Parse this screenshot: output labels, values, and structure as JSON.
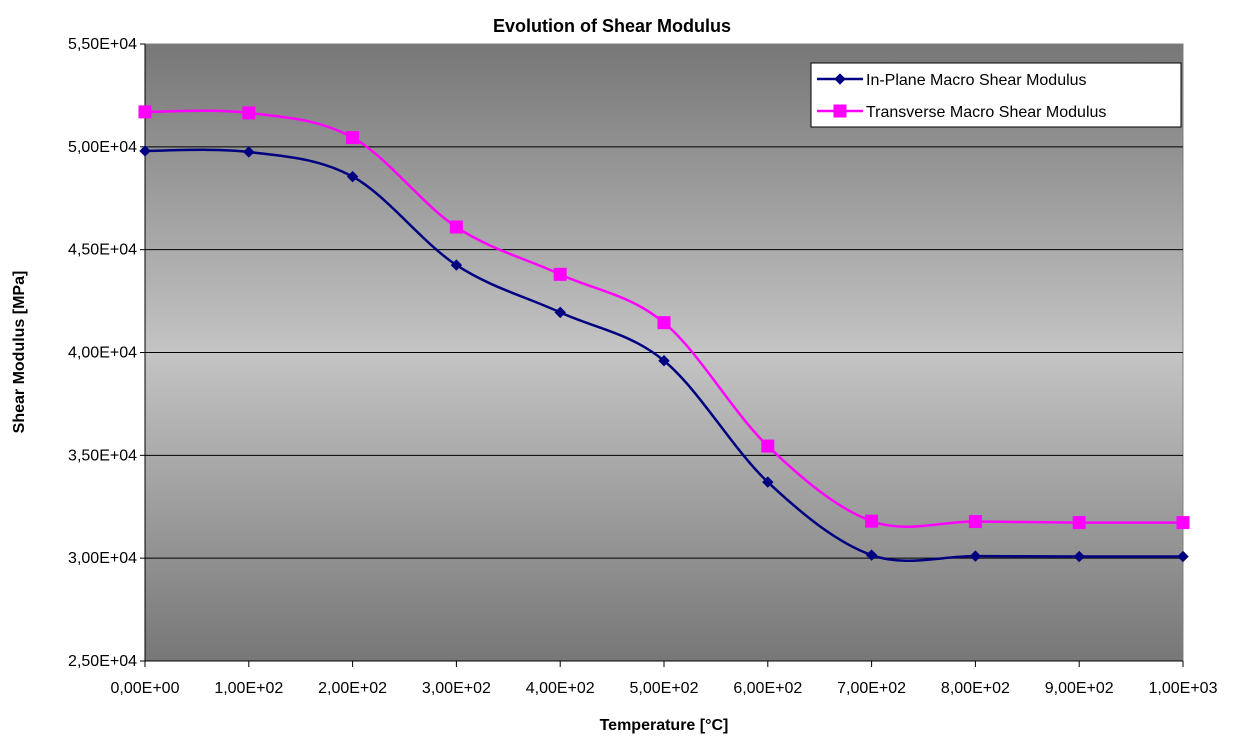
{
  "chart_data": {
    "type": "line",
    "title": "Evolution of Shear Modulus",
    "xlabel": "Temperature [°C]",
    "ylabel": "Shear Modulus [MPa]",
    "xlim": [
      0,
      1000
    ],
    "ylim": [
      25000,
      55000
    ],
    "x_ticks": [
      0,
      100,
      200,
      300,
      400,
      500,
      600,
      700,
      800,
      900,
      1000
    ],
    "y_ticks": [
      25000,
      30000,
      35000,
      40000,
      45000,
      50000,
      55000
    ],
    "x_tick_labels": [
      "0,00E+00",
      "1,00E+02",
      "2,00E+02",
      "3,00E+02",
      "4,00E+02",
      "5,00E+02",
      "6,00E+02",
      "7,00E+02",
      "8,00E+02",
      "9,00E+02",
      "1,00E+03"
    ],
    "y_tick_labels": [
      "2,50E+04",
      "3,00E+04",
      "3,50E+04",
      "4,00E+04",
      "4,50E+04",
      "5,00E+04",
      "5,50E+04"
    ],
    "grid": true,
    "legend_position": "top-right",
    "x": [
      0,
      100,
      200,
      300,
      400,
      500,
      600,
      700,
      800,
      900,
      1000
    ],
    "series": [
      {
        "name": "In-Plane Macro Shear Modulus",
        "color": "#000080",
        "marker": "diamond",
        "values": [
          49800,
          49750,
          48550,
          44250,
          41950,
          39600,
          33700,
          30150,
          30100,
          30080,
          30080
        ]
      },
      {
        "name": "Transverse Macro Shear Modulus",
        "color": "#ff00ff",
        "marker": "square",
        "values": [
          51700,
          51650,
          50450,
          46100,
          43800,
          41450,
          35450,
          31800,
          31780,
          31730,
          31730
        ]
      }
    ]
  }
}
